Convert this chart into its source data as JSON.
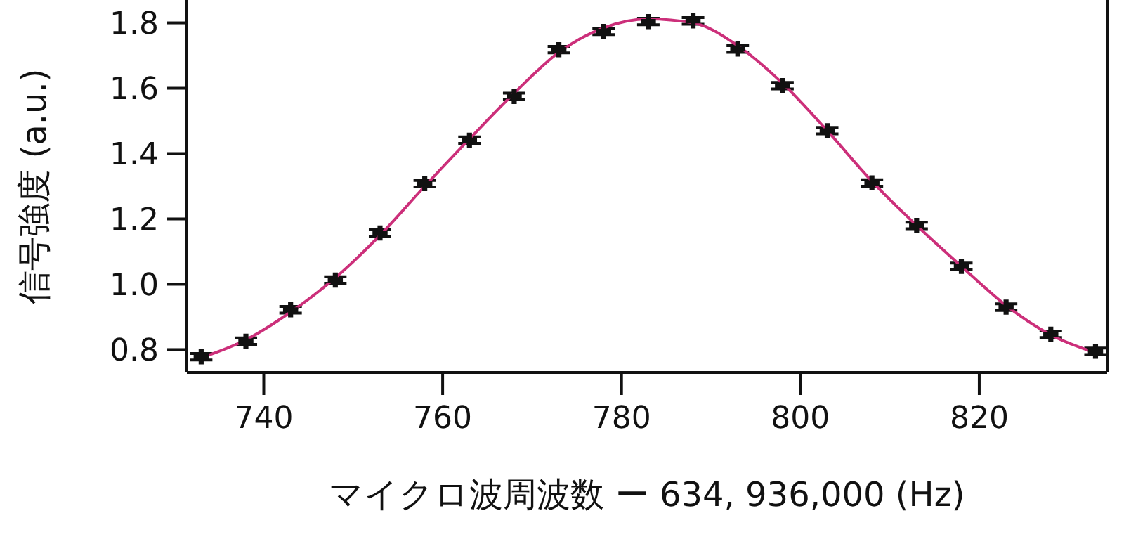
{
  "chart_data": {
    "type": "scatter",
    "xlabel": "マイクロ波周波数 ー 634, 936,000 (Hz)",
    "ylabel": "信号強度 (a.u.)",
    "xlim": [
      731.4,
      834.3
    ],
    "xticks": [
      740,
      760,
      780,
      800,
      820
    ],
    "ylim": [
      0.73,
      1.87
    ],
    "yticks": [
      0.8,
      {
        "value": 1,
        "label": "1.0"
      },
      1.2,
      1.4,
      1.6,
      1.8
    ],
    "grid": false,
    "legend": false,
    "series": [
      {
        "color": "#111111",
        "marker": "cross",
        "x": [
          733,
          738,
          743,
          748,
          753,
          758,
          763,
          768,
          773,
          778,
          783,
          788,
          793,
          798,
          803,
          808,
          813,
          818,
          823,
          828,
          833
        ],
        "values": [
          0.778,
          0.826,
          0.922,
          1.013,
          1.157,
          1.308,
          1.441,
          1.575,
          1.718,
          1.774,
          1.804,
          1.806,
          1.72,
          1.608,
          1.47,
          1.31,
          1.18,
          1.055,
          0.93,
          0.847,
          0.795
        ],
        "errors": [
          0.01,
          0.01,
          0.01,
          0.01,
          0.01,
          0.01,
          0.01,
          0.01,
          0.01,
          0.01,
          0.01,
          0.01,
          0.01,
          0.01,
          0.01,
          0.01,
          0.01,
          0.01,
          0.01,
          0.01,
          0.01
        ]
      },
      {
        "type": "line",
        "color": "#cc2f7a",
        "line_style": "solid",
        "x": [
          733,
          738,
          743,
          748,
          753,
          758,
          763,
          768,
          773,
          778,
          783,
          788,
          793,
          798,
          803,
          808,
          813,
          818,
          823,
          828,
          833
        ],
        "values": [
          0.775,
          0.83,
          0.915,
          1.02,
          1.15,
          1.3,
          1.445,
          1.585,
          1.71,
          1.785,
          1.812,
          1.8,
          1.73,
          1.615,
          1.47,
          1.315,
          1.18,
          1.055,
          0.935,
          0.845,
          0.79
        ]
      }
    ]
  }
}
